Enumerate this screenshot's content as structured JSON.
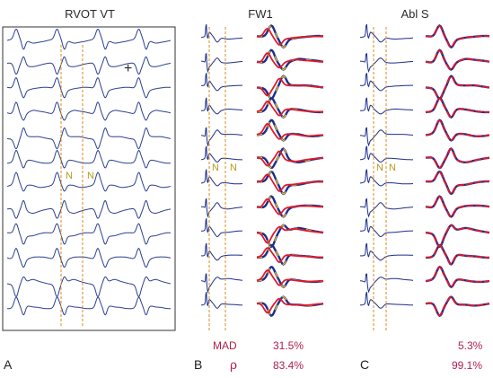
{
  "panels": [
    {
      "letter": "A",
      "title": "RVOT VT"
    },
    {
      "letter": "B",
      "title": "FW1"
    },
    {
      "letter": "C",
      "title": "Abl S"
    }
  ],
  "markers": {
    "n": "N",
    "plus": "+"
  },
  "stats": {
    "mad_label": "MAD",
    "rho_label": "ρ",
    "fw1": {
      "mad": "31.5%",
      "rho": "83.4%"
    },
    "abls": {
      "mad": "5.3%",
      "rho": "99.1%"
    }
  },
  "colors": {
    "trace": "#2b3f8f",
    "ref": "#1b2f8a",
    "pace": "#e0192b",
    "overlap": "#f3c51b",
    "guide": "#d98a1e",
    "stat": "#b01e4a"
  }
}
